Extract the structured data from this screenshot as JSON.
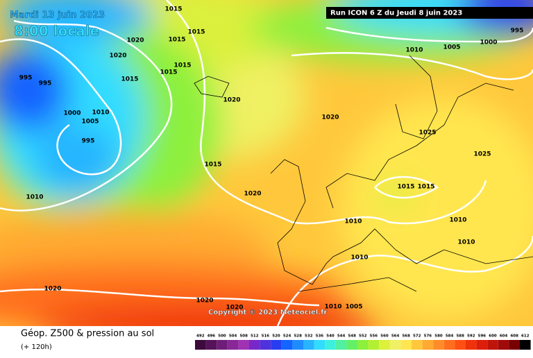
{
  "header": {
    "date": "Mardi 13 juin 2023",
    "time": "8:00 locale",
    "run": "Run ICON 6 Z du Jeudi 8 juin 2023",
    "copyright": "Copyright © 2023 Meteociel.fr"
  },
  "legend": {
    "title": "Géop. Z500 & pression au sol",
    "subtitle": "(+ 120h)",
    "levels": [
      492,
      496,
      500,
      504,
      508,
      512,
      516,
      520,
      524,
      528,
      532,
      536,
      540,
      544,
      548,
      552,
      556,
      560,
      564,
      568,
      572,
      576,
      580,
      584,
      588,
      592,
      596,
      600,
      604,
      608,
      612
    ],
    "colors": [
      "#3c0a3c",
      "#55145a",
      "#6e1e78",
      "#872896",
      "#a032b4",
      "#7828c8",
      "#5032dc",
      "#283cf0",
      "#1464ff",
      "#1e8cff",
      "#28b4ff",
      "#32dcff",
      "#3cf0dc",
      "#50f0a0",
      "#64f064",
      "#8cf03c",
      "#b4f032",
      "#dcf03c",
      "#f0f064",
      "#ffe650",
      "#ffc83c",
      "#ffaa32",
      "#ff8c28",
      "#ff6e1e",
      "#ff5014",
      "#f0320a",
      "#dc1e0a",
      "#be140a",
      "#a00a0a",
      "#780000",
      "#000000"
    ]
  },
  "isobar_labels": [
    "1015",
    "1020",
    "1015",
    "1015",
    "1020",
    "1015",
    "1015",
    "1015",
    "995",
    "995",
    "1020",
    "1000",
    "1010",
    "1005",
    "995",
    "1015",
    "1020",
    "1010",
    "1020",
    "1025",
    "1025",
    "1015",
    "1015",
    "1010",
    "1010",
    "1010",
    "1010",
    "1020",
    "1020",
    "1020",
    "1010",
    "1005",
    "1010",
    "1005",
    "1000",
    "995"
  ]
}
